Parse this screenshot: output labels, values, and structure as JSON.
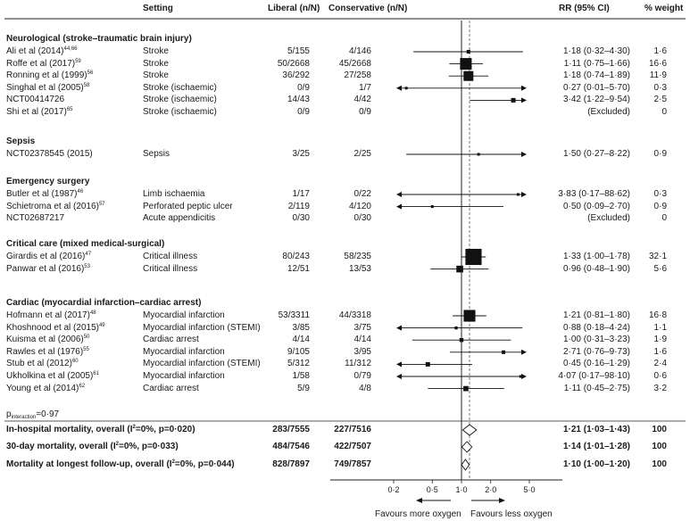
{
  "chart_data": {
    "type": "forest",
    "headers": {
      "setting": "Setting",
      "liberal": "Liberal (n/N)",
      "conservative": "Conservative (n/N)",
      "rr": "RR (95% CI)",
      "weight": "% weight"
    },
    "x_scale": "log",
    "x_ticks": [
      "0·2",
      "0·5",
      "1·0",
      "2·0",
      "5·0"
    ],
    "x_tick_values": [
      0.2,
      0.5,
      1.0,
      2.0,
      5.0
    ],
    "xlim": [
      0.1,
      10
    ],
    "favours_left": "Favours more oxygen",
    "favours_right": "Favours less oxygen",
    "null_value": 1.0,
    "pooled_reference": 1.21,
    "groups": [
      {
        "title": "Neurological (stroke–traumatic brain injury)",
        "studies": [
          {
            "study": "Ali et al (2014)",
            "refs": "44,66",
            "setting": "Stroke",
            "liberal": "5/155",
            "conservative": "4/146",
            "rr_text": "1·18 (0·32–4·30)",
            "weight": "1·6",
            "rr": 1.18,
            "lo": 0.32,
            "hi": 4.3,
            "arrow_left": false,
            "arrow_right": false
          },
          {
            "study": "Roffe et al (2017)",
            "refs": "59",
            "setting": "Stroke",
            "liberal": "50/2668",
            "conservative": "45/2668",
            "rr_text": "1·11 (0·75–1·66)",
            "weight": "16·6",
            "rr": 1.11,
            "lo": 0.75,
            "hi": 1.66,
            "arrow_left": false,
            "arrow_right": false
          },
          {
            "study": "Ronning et al (1999)",
            "refs": "56",
            "setting": "Stroke",
            "liberal": "36/292",
            "conservative": "27/258",
            "rr_text": "1·18 (0·74–1·89)",
            "weight": "11·9",
            "rr": 1.18,
            "lo": 0.74,
            "hi": 1.89,
            "arrow_left": false,
            "arrow_right": false
          },
          {
            "study": "Singhal et al (2005)",
            "refs": "58",
            "setting": "Stroke (ischaemic)",
            "liberal": "0/9",
            "conservative": "1/7",
            "rr_text": "0·27 (0·01–5·70)",
            "weight": "0·3",
            "rr": 0.27,
            "lo": 0.01,
            "hi": 5.7,
            "arrow_left": true,
            "arrow_right": true
          },
          {
            "study": "NCT00414726",
            "refs": "",
            "setting": "Stroke (ischaemic)",
            "liberal": "14/43",
            "conservative": "4/42",
            "rr_text": "3·42 (1·22–9·54)",
            "weight": "2·5",
            "rr": 3.42,
            "lo": 1.22,
            "hi": 9.54,
            "arrow_left": false,
            "arrow_right": true
          },
          {
            "study": "Shi et al (2017)",
            "refs": "65",
            "setting": "Stroke (ischaemic)",
            "liberal": "0/9",
            "conservative": "0/9",
            "rr_text": "(Excluded)",
            "weight": "0",
            "rr": null,
            "lo": null,
            "hi": null,
            "arrow_left": false,
            "arrow_right": false
          }
        ]
      },
      {
        "title": "Sepsis",
        "studies": [
          {
            "study": "NCT02378545 (2015)",
            "refs": "",
            "setting": "Sepsis",
            "liberal": "3/25",
            "conservative": "2/25",
            "rr_text": "1·50 (0·27–8·22)",
            "weight": "0·9",
            "rr": 1.5,
            "lo": 0.27,
            "hi": 8.22,
            "arrow_left": false,
            "arrow_right": true
          }
        ]
      },
      {
        "title": "Emergency surgery",
        "studies": [
          {
            "study": "Butler et al (1987)",
            "refs": "46",
            "setting": "Limb ischaemia",
            "liberal": "1/17",
            "conservative": "0/22",
            "rr_text": "3·83 (0·17–88·62)",
            "weight": "0·3",
            "rr": 3.83,
            "lo": 0.17,
            "hi": 88.62,
            "arrow_left": true,
            "arrow_right": true
          },
          {
            "study": "Schietroma et al (2016)",
            "refs": "57",
            "setting": "Perforated peptic ulcer",
            "liberal": "2/119",
            "conservative": "4/120",
            "rr_text": "0·50 (0·09–2·70)",
            "weight": "0·9",
            "rr": 0.5,
            "lo": 0.09,
            "hi": 2.7,
            "arrow_left": true,
            "arrow_right": false
          },
          {
            "study": "NCT02687217",
            "refs": "",
            "setting": "Acute appendicitis",
            "liberal": "0/30",
            "conservative": "0/30",
            "rr_text": "(Excluded)",
            "weight": "0",
            "rr": null,
            "lo": null,
            "hi": null,
            "arrow_left": false,
            "arrow_right": false
          }
        ]
      },
      {
        "title": "Critical care (mixed medical-surgical)",
        "studies": [
          {
            "study": "Girardis et al (2016)",
            "refs": "47",
            "setting": "Critical illness",
            "liberal": "80/243",
            "conservative": "58/235",
            "rr_text": "1·33 (1·00–1·78)",
            "weight": "32·1",
            "rr": 1.33,
            "lo": 1.0,
            "hi": 1.78,
            "arrow_left": false,
            "arrow_right": false
          },
          {
            "study": "Panwar et al (2016)",
            "refs": "53",
            "setting": "Critical illness",
            "liberal": "12/51",
            "conservative": "13/53",
            "rr_text": "0·96 (0·48–1·90)",
            "weight": "5·6",
            "rr": 0.96,
            "lo": 0.48,
            "hi": 1.9,
            "arrow_left": false,
            "arrow_right": false
          }
        ]
      },
      {
        "title": "Cardiac (myocardial infarction–cardiac arrest)",
        "studies": [
          {
            "study": "Hofmann et al (2017)",
            "refs": "48",
            "setting": "Myocardial infarction",
            "liberal": "53/3311",
            "conservative": "44/3318",
            "rr_text": "1·21 (0·81–1·80)",
            "weight": "16·8",
            "rr": 1.21,
            "lo": 0.81,
            "hi": 1.8,
            "arrow_left": false,
            "arrow_right": false
          },
          {
            "study": "Khoshnood et al (2015)",
            "refs": "49",
            "setting": "Myocardial infarction (STEMI)",
            "liberal": "3/85",
            "conservative": "3/75",
            "rr_text": "0·88 (0·18–4·24)",
            "weight": "1·1",
            "rr": 0.88,
            "lo": 0.18,
            "hi": 4.24,
            "arrow_left": false,
            "arrow_right": false
          },
          {
            "study": "Kuisma et al (2006)",
            "refs": "50",
            "setting": "Cardiac arrest",
            "liberal": "4/14",
            "conservative": "4/14",
            "rr_text": "1·00 (0·31–3·23)",
            "weight": "1·9",
            "rr": 1.0,
            "lo": 0.31,
            "hi": 3.23,
            "arrow_left": false,
            "arrow_right": false
          },
          {
            "study": "Rawles et al (1976)",
            "refs": "55",
            "setting": "Myocardial infarction",
            "liberal": "9/105",
            "conservative": "3/95",
            "rr_text": "2·71 (0·76–9·73)",
            "weight": "1·6",
            "rr": 2.71,
            "lo": 0.76,
            "hi": 9.73,
            "arrow_left": false,
            "arrow_right": true
          },
          {
            "study": "Stub et al (2012)",
            "refs": "60",
            "setting": "Myocardial infarction (STEMI)",
            "liberal": "5/312",
            "conservative": "11/312",
            "rr_text": "0·45 (0·16–1·29)",
            "weight": "2·4",
            "rr": 0.45,
            "lo": 0.16,
            "hi": 1.29,
            "arrow_left": false,
            "arrow_right": false
          },
          {
            "study": "Ukholkina et al (2005)",
            "refs": "61",
            "setting": "Myocardial infarction",
            "liberal": "1/58",
            "conservative": "0/79",
            "rr_text": "4·07 (0·17–98·10)",
            "weight": "0·6",
            "rr": 4.07,
            "lo": 0.17,
            "hi": 98.1,
            "arrow_left": true,
            "arrow_right": true
          },
          {
            "study": "Young et al (2014)",
            "refs": "62",
            "setting": "Cardiac arrest",
            "liberal": "5/9",
            "conservative": "4/8",
            "rr_text": "1·11 (0·45–2·75)",
            "weight": "3·2",
            "rr": 1.11,
            "lo": 0.45,
            "hi": 2.75,
            "arrow_left": false,
            "arrow_right": false
          }
        ]
      }
    ],
    "p_interaction": {
      "label": "p",
      "sub": "interaction",
      "value": "=0·97"
    },
    "summaries": [
      {
        "label": "In-hospital mortality, overall",
        "stats_pre": "(I",
        "stats_sup": "2",
        "stats_post": "=0%, p=0·020)",
        "liberal": "283/7555",
        "conservative": "227/7516",
        "rr_text": "1·21 (1·03–1·43)",
        "weight": "100",
        "rr": 1.21,
        "lo": 1.03,
        "hi": 1.43
      },
      {
        "label": "30-day mortality, overall",
        "stats_pre": "(I",
        "stats_sup": "2",
        "stats_post": "=0%, p=0·033)",
        "liberal": "484/7546",
        "conservative": "422/7507",
        "rr_text": "1·14 (1·01–1·28)",
        "weight": "100",
        "rr": 1.14,
        "lo": 1.01,
        "hi": 1.28
      },
      {
        "label": "Mortality at longest follow-up, overall",
        "stats_pre": "(I",
        "stats_sup": "2",
        "stats_post": "=0%, p=0·044)",
        "liberal": "828/7897",
        "conservative": "749/7857",
        "rr_text": "1·10 (1·00–1·20)",
        "weight": "100",
        "rr": 1.1,
        "lo": 1.0,
        "hi": 1.2
      }
    ]
  }
}
